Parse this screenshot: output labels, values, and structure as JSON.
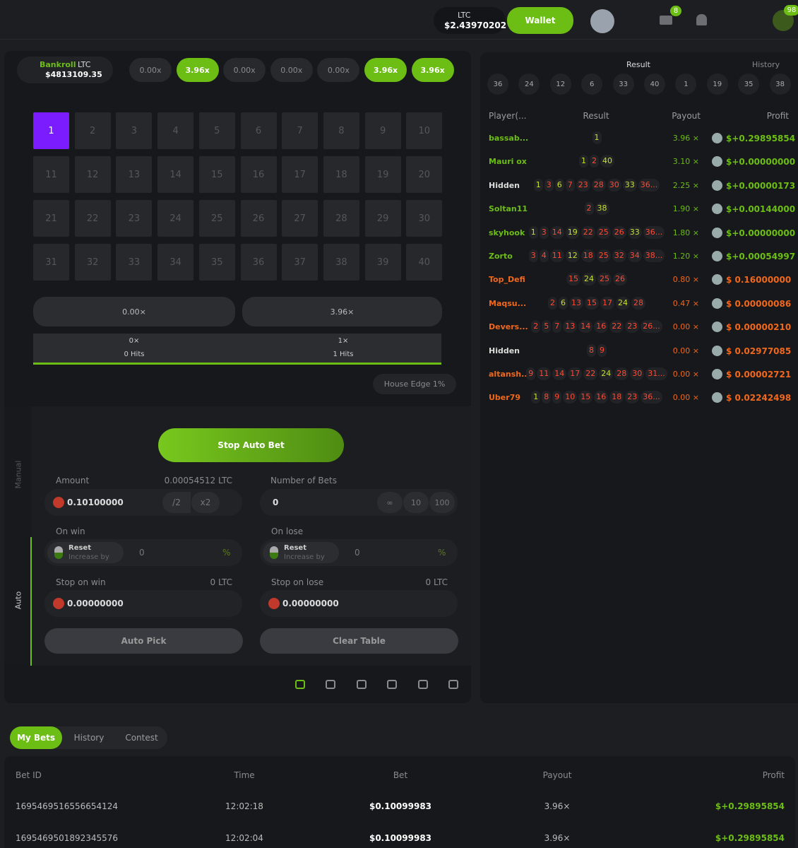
{
  "header": {
    "currency": "LTC",
    "balance": "$2.43970202",
    "wallet": "Wallet",
    "mail_badge": "8",
    "notif_badge": "98"
  },
  "game": {
    "bankroll_label": "Bankroll",
    "bankroll_currency": "LTC",
    "bankroll_value": "$4813109.35",
    "multipliers": [
      {
        "label": "0.00x",
        "active": false
      },
      {
        "label": "3.96x",
        "active": true
      },
      {
        "label": "0.00x",
        "active": false
      },
      {
        "label": "0.00x",
        "active": false
      },
      {
        "label": "0.00x",
        "active": false
      },
      {
        "label": "3.96x",
        "active": true
      },
      {
        "label": "3.96x",
        "active": true
      }
    ],
    "tiles": [
      1,
      2,
      3,
      4,
      5,
      6,
      7,
      8,
      9,
      10,
      11,
      12,
      13,
      14,
      15,
      16,
      17,
      18,
      19,
      20,
      21,
      22,
      23,
      24,
      25,
      26,
      27,
      28,
      29,
      30,
      31,
      32,
      33,
      34,
      35,
      36,
      37,
      38,
      39,
      40
    ],
    "selected_tile": 1,
    "payouts": [
      "0.00×",
      "3.96×"
    ],
    "hits": [
      {
        "multiplier": "0×",
        "label": "0 Hits"
      },
      {
        "multiplier": "1×",
        "label": "1 Hits"
      }
    ],
    "house_edge": "House Edge 1%"
  },
  "controls": {
    "tab_manual": "Manual",
    "tab_auto": "Auto",
    "stop_button": "Stop Auto Bet",
    "amount_label": "Amount",
    "amount_ltc": "0.00054512 LTC",
    "amount_value": "0.10100000",
    "half": "/2",
    "double": "x2",
    "bets_label": "Number of Bets",
    "bets_value": "0",
    "bets_options": [
      "∞",
      "10",
      "100"
    ],
    "on_win_label": "On win",
    "on_lose_label": "On lose",
    "reset": "Reset",
    "increase_by": "Increase by",
    "win_value": "0",
    "lose_value": "0",
    "percent": "%",
    "stop_win_label": "Stop on win",
    "stop_win_ltc": "0 LTC",
    "stop_win_value": "0.00000000",
    "stop_lose_label": "Stop on lose",
    "stop_lose_ltc": "0 LTC",
    "stop_lose_value": "0.00000000",
    "auto_pick": "Auto Pick",
    "clear_table": "Clear Table"
  },
  "feed": {
    "result_title": "Result",
    "history": "History",
    "recent": [
      36,
      24,
      12,
      6,
      33,
      40,
      1,
      19,
      35,
      38
    ],
    "headers": [
      "Player(...",
      "Result",
      "Payout",
      "Profit"
    ],
    "rows": [
      {
        "player": "bassab...",
        "results": [
          "1"
        ],
        "payout": "3.96 ×",
        "profit": "$+0.29895854",
        "win": true
      },
      {
        "player": "Mauri ox",
        "results": [
          "1",
          "2",
          "40"
        ],
        "payout": "3.10 ×",
        "profit": "$+0.00000000",
        "win": true
      },
      {
        "player": "Hidden",
        "results": [
          "1",
          "3",
          "6",
          "7",
          "23",
          "28",
          "30",
          "33",
          "36..."
        ],
        "payout": "2.25 ×",
        "profit": "$+0.00000173",
        "win": true
      },
      {
        "player": "Soltan11",
        "results": [
          "2",
          "38"
        ],
        "payout": "1.90 ×",
        "profit": "$+0.00144000",
        "win": true
      },
      {
        "player": "skyhook",
        "results": [
          "1",
          "3",
          "14",
          "19",
          "22",
          "25",
          "26",
          "33",
          "36..."
        ],
        "payout": "1.80 ×",
        "profit": "$+0.00000000",
        "win": true
      },
      {
        "player": "Zorto",
        "results": [
          "3",
          "4",
          "11",
          "12",
          "18",
          "25",
          "32",
          "34",
          "38..."
        ],
        "payout": "1.20 ×",
        "profit": "$+0.00054997",
        "win": true
      },
      {
        "player": "Top_Defi",
        "results": [
          "15",
          "24",
          "25",
          "26"
        ],
        "payout": "0.80 ×",
        "profit": "$ 0.16000000",
        "win": false
      },
      {
        "player": "Maqsu...",
        "results": [
          "2",
          "6",
          "13",
          "15",
          "17",
          "24",
          "28"
        ],
        "payout": "0.47 ×",
        "profit": "$ 0.00000086",
        "win": false
      },
      {
        "player": "Devers...",
        "results": [
          "2",
          "5",
          "7",
          "13",
          "14",
          "16",
          "22",
          "23",
          "26..."
        ],
        "payout": "0.00 ×",
        "profit": "$ 0.00000210",
        "win": false
      },
      {
        "player": "Hidden",
        "results": [
          "8",
          "9"
        ],
        "payout": "0.00 ×",
        "profit": "$ 0.02977085",
        "win": false
      },
      {
        "player": "altansh...",
        "results": [
          "9",
          "11",
          "14",
          "17",
          "22",
          "24",
          "28",
          "30",
          "31..."
        ],
        "payout": "0.00 ×",
        "profit": "$ 0.00002721",
        "win": false
      },
      {
        "player": "Uber79",
        "results": [
          "1",
          "8",
          "9",
          "10",
          "15",
          "16",
          "18",
          "23",
          "36..."
        ],
        "payout": "0.00 ×",
        "profit": "$ 0.02242498",
        "win": false
      }
    ]
  },
  "bets": {
    "tabs": [
      "My Bets",
      "History",
      "Contest"
    ],
    "headers": [
      "Bet ID",
      "Time",
      "Bet",
      "Payout",
      "Profit"
    ],
    "rows": [
      [
        "1695469516556654124",
        "12:02:18",
        "$0.10099983",
        "3.96×",
        "$+0.29895854"
      ],
      [
        "1695469501892345576",
        "12:02:04",
        "$0.10099983",
        "3.96×",
        "$+0.29895854"
      ]
    ]
  }
}
